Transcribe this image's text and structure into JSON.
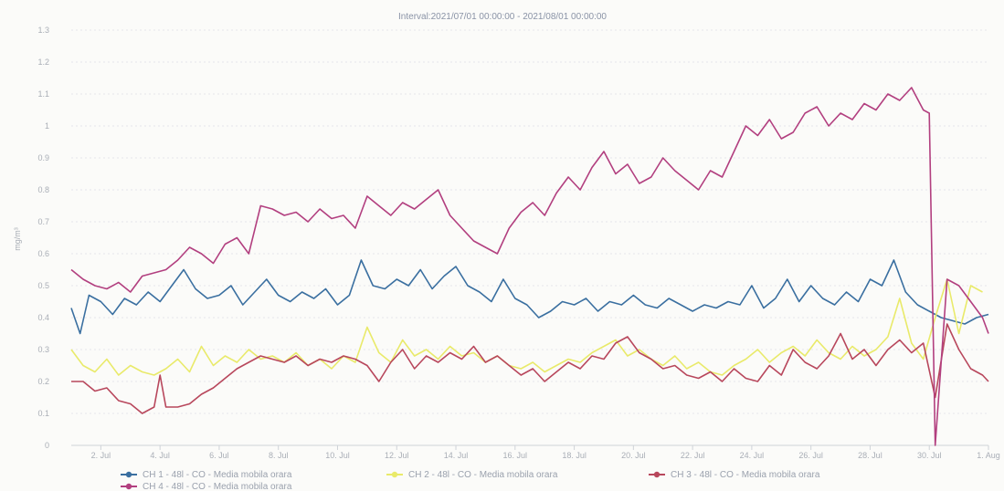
{
  "chart_data": {
    "type": "line",
    "title": "Interval:2021/07/01 00:00:00 - 2021/08/01 00:00:00",
    "ylabel": "mg/m³",
    "xlabel": "",
    "ylim": [
      0,
      1.3
    ],
    "yticks": [
      "0",
      "0.1",
      "0.2",
      "0.3",
      "0.4",
      "0.5",
      "0.6",
      "0.7",
      "0.8",
      "0.9",
      "1",
      "1.1",
      "1.2",
      "1.3"
    ],
    "xlim": [
      1,
      32
    ],
    "xticks": [
      {
        "x": 2,
        "label": "2. Jul"
      },
      {
        "x": 4,
        "label": "4. Jul"
      },
      {
        "x": 6,
        "label": "6. Jul"
      },
      {
        "x": 8,
        "label": "8. Jul"
      },
      {
        "x": 10,
        "label": "10. Jul"
      },
      {
        "x": 12,
        "label": "12. Jul"
      },
      {
        "x": 14,
        "label": "14. Jul"
      },
      {
        "x": 16,
        "label": "16. Jul"
      },
      {
        "x": 18,
        "label": "18. Jul"
      },
      {
        "x": 20,
        "label": "20. Jul"
      },
      {
        "x": 22,
        "label": "22. Jul"
      },
      {
        "x": 24,
        "label": "24. Jul"
      },
      {
        "x": 26,
        "label": "26. Jul"
      },
      {
        "x": 28,
        "label": "28. Jul"
      },
      {
        "x": 30,
        "label": "30. Jul"
      },
      {
        "x": 32,
        "label": "1. Aug"
      }
    ],
    "grid": true,
    "legend_position": "bottom",
    "series": [
      {
        "name": "CH 1 - 48l - CO - Media mobila orara",
        "color": "#3a6fa0",
        "x": [
          1,
          1.3,
          1.6,
          2,
          2.4,
          2.8,
          3.2,
          3.6,
          4,
          4.4,
          4.8,
          5.2,
          5.6,
          6,
          6.4,
          6.8,
          7.2,
          7.6,
          8,
          8.4,
          8.8,
          9.2,
          9.6,
          10,
          10.4,
          10.8,
          11.2,
          11.6,
          12,
          12.4,
          12.8,
          13.2,
          13.6,
          14,
          14.4,
          14.8,
          15.2,
          15.6,
          16,
          16.4,
          16.8,
          17.2,
          17.6,
          18,
          18.4,
          18.8,
          19.2,
          19.6,
          20,
          20.4,
          20.8,
          21.2,
          21.6,
          22,
          22.4,
          22.8,
          23.2,
          23.6,
          24,
          24.4,
          24.8,
          25.2,
          25.6,
          26,
          26.4,
          26.8,
          27.2,
          27.6,
          28,
          28.4,
          28.8,
          29.2,
          29.6,
          30,
          30.4,
          30.8,
          31.2,
          31.6,
          32
        ],
        "values": [
          0.43,
          0.35,
          0.47,
          0.45,
          0.41,
          0.46,
          0.44,
          0.48,
          0.45,
          0.5,
          0.55,
          0.49,
          0.46,
          0.47,
          0.5,
          0.44,
          0.48,
          0.52,
          0.47,
          0.45,
          0.48,
          0.46,
          0.49,
          0.44,
          0.47,
          0.58,
          0.5,
          0.49,
          0.52,
          0.5,
          0.55,
          0.49,
          0.53,
          0.56,
          0.5,
          0.48,
          0.45,
          0.52,
          0.46,
          0.44,
          0.4,
          0.42,
          0.45,
          0.44,
          0.46,
          0.42,
          0.45,
          0.44,
          0.47,
          0.44,
          0.43,
          0.46,
          0.44,
          0.42,
          0.44,
          0.43,
          0.45,
          0.44,
          0.5,
          0.43,
          0.46,
          0.52,
          0.45,
          0.5,
          0.46,
          0.44,
          0.48,
          0.45,
          0.52,
          0.5,
          0.58,
          0.48,
          0.44,
          0.42,
          0.4,
          0.39,
          0.38,
          0.4,
          0.41
        ]
      },
      {
        "name": "CH 2 - 48l - CO - Media mobila orara",
        "color": "#e9ea6a",
        "x": [
          1,
          1.4,
          1.8,
          2.2,
          2.6,
          3,
          3.4,
          3.8,
          4.2,
          4.6,
          5,
          5.4,
          5.8,
          6.2,
          6.6,
          7,
          7.4,
          7.8,
          8.2,
          8.6,
          9,
          9.4,
          9.8,
          10.2,
          10.6,
          11,
          11.4,
          11.8,
          12.2,
          12.6,
          13,
          13.4,
          13.8,
          14.2,
          14.6,
          15,
          15.4,
          15.8,
          16.2,
          16.6,
          17,
          17.4,
          17.8,
          18.2,
          18.6,
          19,
          19.4,
          19.8,
          20.2,
          20.6,
          21,
          21.4,
          21.8,
          22.2,
          22.6,
          23,
          23.4,
          23.8,
          24.2,
          24.6,
          25,
          25.4,
          25.8,
          26.2,
          26.6,
          27,
          27.4,
          27.8,
          28.2,
          28.6,
          29,
          29.4,
          29.8,
          30.2,
          30.6,
          31,
          31.4,
          31.8
        ],
        "values": [
          0.3,
          0.25,
          0.23,
          0.27,
          0.22,
          0.25,
          0.23,
          0.22,
          0.24,
          0.27,
          0.23,
          0.31,
          0.25,
          0.28,
          0.26,
          0.3,
          0.27,
          0.28,
          0.26,
          0.29,
          0.25,
          0.27,
          0.24,
          0.28,
          0.26,
          0.37,
          0.29,
          0.26,
          0.33,
          0.28,
          0.3,
          0.27,
          0.31,
          0.28,
          0.29,
          0.26,
          0.28,
          0.25,
          0.24,
          0.26,
          0.23,
          0.25,
          0.27,
          0.26,
          0.29,
          0.31,
          0.33,
          0.28,
          0.3,
          0.27,
          0.25,
          0.28,
          0.24,
          0.26,
          0.23,
          0.22,
          0.25,
          0.27,
          0.3,
          0.26,
          0.29,
          0.31,
          0.28,
          0.33,
          0.29,
          0.27,
          0.31,
          0.28,
          0.3,
          0.34,
          0.46,
          0.32,
          0.27,
          0.4,
          0.52,
          0.35,
          0.5,
          0.48
        ]
      },
      {
        "name": "CH 3 - 48l - CO - Media mobila orara",
        "color": "#b8475c",
        "x": [
          1,
          1.4,
          1.8,
          2.2,
          2.6,
          3,
          3.4,
          3.8,
          4,
          4.2,
          4.6,
          5,
          5.4,
          5.8,
          6.2,
          6.6,
          7,
          7.4,
          7.8,
          8.2,
          8.6,
          9,
          9.4,
          9.8,
          10.2,
          10.6,
          11,
          11.4,
          11.8,
          12.2,
          12.6,
          13,
          13.4,
          13.8,
          14.2,
          14.6,
          15,
          15.4,
          15.8,
          16.2,
          16.6,
          17,
          17.4,
          17.8,
          18.2,
          18.6,
          19,
          19.4,
          19.8,
          20.2,
          20.6,
          21,
          21.4,
          21.8,
          22.2,
          22.6,
          23,
          23.4,
          23.8,
          24.2,
          24.6,
          25,
          25.4,
          25.8,
          26.2,
          26.6,
          27,
          27.4,
          27.8,
          28.2,
          28.6,
          29,
          29.4,
          29.8,
          30.2,
          30.6,
          31,
          31.4,
          31.8,
          32
        ],
        "values": [
          0.2,
          0.2,
          0.17,
          0.18,
          0.14,
          0.13,
          0.1,
          0.12,
          0.22,
          0.12,
          0.12,
          0.13,
          0.16,
          0.18,
          0.21,
          0.24,
          0.26,
          0.28,
          0.27,
          0.26,
          0.28,
          0.25,
          0.27,
          0.26,
          0.28,
          0.27,
          0.25,
          0.2,
          0.26,
          0.3,
          0.24,
          0.28,
          0.26,
          0.29,
          0.27,
          0.31,
          0.26,
          0.28,
          0.25,
          0.22,
          0.24,
          0.2,
          0.23,
          0.26,
          0.24,
          0.28,
          0.27,
          0.32,
          0.34,
          0.29,
          0.27,
          0.24,
          0.25,
          0.22,
          0.21,
          0.23,
          0.2,
          0.24,
          0.21,
          0.2,
          0.25,
          0.22,
          0.3,
          0.26,
          0.24,
          0.28,
          0.35,
          0.27,
          0.3,
          0.25,
          0.3,
          0.33,
          0.29,
          0.32,
          0.15,
          0.38,
          0.3,
          0.24,
          0.22,
          0.2
        ]
      },
      {
        "name": "CH 4 - 48l - CO - Media mobila orara",
        "color": "#b23f7f",
        "x": [
          1,
          1.4,
          1.8,
          2.2,
          2.6,
          3,
          3.4,
          3.8,
          4.2,
          4.6,
          5,
          5.4,
          5.8,
          6.2,
          6.6,
          7,
          7.4,
          7.8,
          8.2,
          8.6,
          9,
          9.4,
          9.8,
          10.2,
          10.6,
          11,
          11.4,
          11.8,
          12.2,
          12.6,
          13,
          13.4,
          13.8,
          14.2,
          14.6,
          15,
          15.4,
          15.8,
          16.2,
          16.6,
          17,
          17.4,
          17.8,
          18.2,
          18.6,
          19,
          19.4,
          19.8,
          20.2,
          20.6,
          21,
          21.4,
          21.8,
          22.2,
          22.6,
          23,
          23.4,
          23.8,
          24.2,
          24.6,
          25,
          25.4,
          25.8,
          26.2,
          26.6,
          27,
          27.4,
          27.8,
          28.2,
          28.6,
          29,
          29.4,
          29.8,
          30,
          30.2,
          30.6,
          31,
          31.4,
          31.8,
          32
        ],
        "values": [
          0.55,
          0.52,
          0.5,
          0.49,
          0.51,
          0.48,
          0.53,
          0.54,
          0.55,
          0.58,
          0.62,
          0.6,
          0.57,
          0.63,
          0.65,
          0.6,
          0.75,
          0.74,
          0.72,
          0.73,
          0.7,
          0.74,
          0.71,
          0.72,
          0.68,
          0.78,
          0.75,
          0.72,
          0.76,
          0.74,
          0.77,
          0.8,
          0.72,
          0.68,
          0.64,
          0.62,
          0.6,
          0.68,
          0.73,
          0.76,
          0.72,
          0.79,
          0.84,
          0.8,
          0.87,
          0.92,
          0.85,
          0.88,
          0.82,
          0.84,
          0.9,
          0.86,
          0.83,
          0.8,
          0.86,
          0.84,
          0.92,
          1.0,
          0.97,
          1.02,
          0.96,
          0.98,
          1.04,
          1.06,
          1.0,
          1.04,
          1.02,
          1.07,
          1.05,
          1.1,
          1.08,
          1.12,
          1.05,
          1.04,
          0.0,
          0.52,
          0.5,
          0.45,
          0.4,
          0.35
        ]
      }
    ]
  }
}
